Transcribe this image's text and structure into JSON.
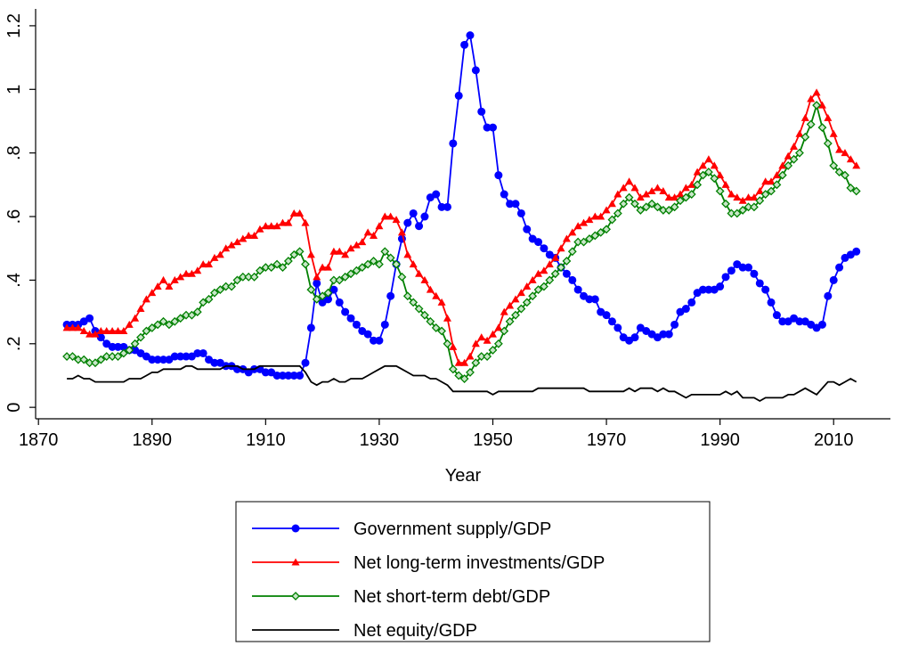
{
  "chart_data": {
    "type": "line",
    "xlabel": "Year",
    "xlim": [
      1869.5,
      2020
    ],
    "xticks": [
      1870,
      1890,
      1910,
      1930,
      1950,
      1970,
      1990,
      2010
    ],
    "ylim": [
      -0.036,
      1.253
    ],
    "yticks": [
      0,
      {
        "value": 0.2,
        "label": ".2"
      },
      {
        "value": 0.4,
        "label": ".4"
      },
      {
        "value": 0.6,
        "label": ".6"
      },
      {
        "value": 0.8,
        "label": ".8"
      },
      1,
      {
        "value": 1.2,
        "label": "1.2"
      }
    ],
    "grid": false,
    "legend": "bottom",
    "x": [
      1875,
      1876,
      1877,
      1878,
      1879,
      1880,
      1881,
      1882,
      1883,
      1884,
      1885,
      1886,
      1887,
      1888,
      1889,
      1890,
      1891,
      1892,
      1893,
      1894,
      1895,
      1896,
      1897,
      1898,
      1899,
      1900,
      1901,
      1902,
      1903,
      1904,
      1905,
      1906,
      1907,
      1908,
      1909,
      1910,
      1911,
      1912,
      1913,
      1914,
      1915,
      1916,
      1917,
      1918,
      1919,
      1920,
      1921,
      1922,
      1923,
      1924,
      1925,
      1926,
      1927,
      1928,
      1929,
      1930,
      1931,
      1932,
      1933,
      1934,
      1935,
      1936,
      1937,
      1938,
      1939,
      1940,
      1941,
      1942,
      1943,
      1944,
      1945,
      1946,
      1947,
      1948,
      1949,
      1950,
      1951,
      1952,
      1953,
      1954,
      1955,
      1956,
      1957,
      1958,
      1959,
      1960,
      1961,
      1962,
      1963,
      1964,
      1965,
      1966,
      1967,
      1968,
      1969,
      1970,
      1971,
      1972,
      1973,
      1974,
      1975,
      1976,
      1977,
      1978,
      1979,
      1980,
      1981,
      1982,
      1983,
      1984,
      1985,
      1986,
      1987,
      1988,
      1989,
      1990,
      1991,
      1992,
      1993,
      1994,
      1995,
      1996,
      1997,
      1998,
      1999,
      2000,
      2001,
      2002,
      2003,
      2004,
      2005,
      2006,
      2007,
      2008,
      2009,
      2010,
      2011,
      2012,
      2013,
      2014
    ],
    "series": [
      {
        "name": "Government supply/GDP",
        "color": "#0000ff",
        "marker": "circle",
        "values": [
          0.26,
          0.26,
          0.26,
          0.27,
          0.28,
          0.24,
          0.22,
          0.2,
          0.19,
          0.19,
          0.19,
          0.18,
          0.18,
          0.17,
          0.16,
          0.15,
          0.15,
          0.15,
          0.15,
          0.16,
          0.16,
          0.16,
          0.16,
          0.17,
          0.17,
          0.15,
          0.14,
          0.14,
          0.13,
          0.13,
          0.12,
          0.12,
          0.11,
          0.12,
          0.12,
          0.11,
          0.11,
          0.1,
          0.1,
          0.1,
          0.1,
          0.1,
          0.14,
          0.25,
          0.39,
          0.33,
          0.34,
          0.37,
          0.33,
          0.3,
          0.28,
          0.26,
          0.24,
          0.23,
          0.21,
          0.21,
          0.26,
          0.35,
          0.45,
          0.53,
          0.58,
          0.61,
          0.57,
          0.6,
          0.66,
          0.67,
          0.63,
          0.63,
          0.83,
          0.98,
          1.14,
          1.17,
          1.06,
          0.93,
          0.88,
          0.88,
          0.73,
          0.67,
          0.64,
          0.64,
          0.61,
          0.56,
          0.53,
          0.52,
          0.5,
          0.48,
          0.47,
          0.44,
          0.42,
          0.4,
          0.37,
          0.35,
          0.34,
          0.34,
          0.3,
          0.29,
          0.27,
          0.25,
          0.22,
          0.21,
          0.22,
          0.25,
          0.24,
          0.23,
          0.22,
          0.23,
          0.23,
          0.26,
          0.3,
          0.31,
          0.33,
          0.36,
          0.37,
          0.37,
          0.37,
          0.38,
          0.41,
          0.43,
          0.45,
          0.44,
          0.44,
          0.42,
          0.39,
          0.37,
          0.33,
          0.29,
          0.27,
          0.27,
          0.28,
          0.27,
          0.27,
          0.26,
          0.25,
          0.26,
          0.35,
          0.4,
          0.44,
          0.47,
          0.48,
          0.49
        ]
      },
      {
        "name": "Net long-term investments/GDP",
        "color": "#ff0000",
        "marker": "triangle",
        "values": [
          0.25,
          0.25,
          0.25,
          0.24,
          0.23,
          0.23,
          0.24,
          0.24,
          0.24,
          0.24,
          0.24,
          0.26,
          0.28,
          0.31,
          0.34,
          0.36,
          0.38,
          0.4,
          0.38,
          0.4,
          0.41,
          0.42,
          0.42,
          0.43,
          0.45,
          0.45,
          0.47,
          0.48,
          0.5,
          0.51,
          0.52,
          0.53,
          0.54,
          0.54,
          0.56,
          0.57,
          0.57,
          0.57,
          0.58,
          0.58,
          0.61,
          0.61,
          0.58,
          0.48,
          0.41,
          0.44,
          0.44,
          0.49,
          0.49,
          0.48,
          0.5,
          0.51,
          0.52,
          0.55,
          0.54,
          0.57,
          0.6,
          0.6,
          0.59,
          0.55,
          0.48,
          0.45,
          0.42,
          0.4,
          0.37,
          0.35,
          0.33,
          0.28,
          0.19,
          0.14,
          0.14,
          0.16,
          0.2,
          0.22,
          0.21,
          0.23,
          0.25,
          0.3,
          0.32,
          0.34,
          0.36,
          0.38,
          0.4,
          0.42,
          0.43,
          0.45,
          0.47,
          0.5,
          0.53,
          0.55,
          0.57,
          0.58,
          0.59,
          0.6,
          0.6,
          0.62,
          0.64,
          0.67,
          0.69,
          0.71,
          0.69,
          0.66,
          0.67,
          0.68,
          0.69,
          0.68,
          0.66,
          0.66,
          0.67,
          0.69,
          0.7,
          0.74,
          0.76,
          0.78,
          0.76,
          0.73,
          0.7,
          0.67,
          0.66,
          0.65,
          0.66,
          0.66,
          0.68,
          0.71,
          0.71,
          0.73,
          0.76,
          0.79,
          0.82,
          0.86,
          0.91,
          0.97,
          0.99,
          0.95,
          0.91,
          0.86,
          0.81,
          0.8,
          0.78,
          0.76
        ]
      },
      {
        "name": "Net short-term debt/GDP",
        "color": "#008000",
        "marker": "diamond",
        "values": [
          0.16,
          0.16,
          0.15,
          0.15,
          0.14,
          0.14,
          0.15,
          0.16,
          0.16,
          0.16,
          0.17,
          0.18,
          0.2,
          0.22,
          0.24,
          0.25,
          0.26,
          0.27,
          0.26,
          0.27,
          0.28,
          0.29,
          0.29,
          0.3,
          0.33,
          0.34,
          0.36,
          0.37,
          0.38,
          0.38,
          0.4,
          0.41,
          0.41,
          0.41,
          0.43,
          0.44,
          0.44,
          0.45,
          0.44,
          0.46,
          0.48,
          0.49,
          0.45,
          0.37,
          0.34,
          0.35,
          0.36,
          0.4,
          0.4,
          0.41,
          0.42,
          0.43,
          0.44,
          0.45,
          0.46,
          0.45,
          0.49,
          0.47,
          0.45,
          0.41,
          0.35,
          0.33,
          0.31,
          0.29,
          0.27,
          0.25,
          0.24,
          0.2,
          0.12,
          0.1,
          0.09,
          0.11,
          0.14,
          0.16,
          0.16,
          0.18,
          0.2,
          0.24,
          0.27,
          0.29,
          0.31,
          0.33,
          0.35,
          0.37,
          0.38,
          0.4,
          0.42,
          0.44,
          0.46,
          0.49,
          0.52,
          0.52,
          0.53,
          0.54,
          0.55,
          0.56,
          0.59,
          0.61,
          0.64,
          0.66,
          0.64,
          0.62,
          0.63,
          0.64,
          0.63,
          0.62,
          0.62,
          0.63,
          0.65,
          0.66,
          0.67,
          0.7,
          0.73,
          0.74,
          0.72,
          0.68,
          0.64,
          0.61,
          0.61,
          0.62,
          0.63,
          0.63,
          0.65,
          0.67,
          0.68,
          0.7,
          0.73,
          0.76,
          0.78,
          0.8,
          0.85,
          0.89,
          0.95,
          0.88,
          0.83,
          0.76,
          0.74,
          0.73,
          0.69,
          0.68
        ]
      },
      {
        "name": "Net equity/GDP",
        "color": "#000000",
        "marker": "none",
        "values": [
          0.09,
          0.09,
          0.1,
          0.09,
          0.09,
          0.08,
          0.08,
          0.08,
          0.08,
          0.08,
          0.08,
          0.09,
          0.09,
          0.09,
          0.1,
          0.11,
          0.11,
          0.12,
          0.12,
          0.12,
          0.12,
          0.13,
          0.13,
          0.12,
          0.12,
          0.12,
          0.12,
          0.12,
          0.13,
          0.13,
          0.13,
          0.12,
          0.12,
          0.12,
          0.13,
          0.13,
          0.13,
          0.13,
          0.13,
          0.13,
          0.13,
          0.13,
          0.11,
          0.08,
          0.07,
          0.08,
          0.08,
          0.09,
          0.08,
          0.08,
          0.09,
          0.09,
          0.09,
          0.1,
          0.11,
          0.12,
          0.13,
          0.13,
          0.13,
          0.12,
          0.11,
          0.1,
          0.1,
          0.1,
          0.09,
          0.09,
          0.08,
          0.07,
          0.05,
          0.05,
          0.05,
          0.05,
          0.05,
          0.05,
          0.05,
          0.04,
          0.05,
          0.05,
          0.05,
          0.05,
          0.05,
          0.05,
          0.05,
          0.06,
          0.06,
          0.06,
          0.06,
          0.06,
          0.06,
          0.06,
          0.06,
          0.06,
          0.05,
          0.05,
          0.05,
          0.05,
          0.05,
          0.05,
          0.05,
          0.06,
          0.05,
          0.06,
          0.06,
          0.06,
          0.05,
          0.06,
          0.05,
          0.05,
          0.04,
          0.03,
          0.04,
          0.04,
          0.04,
          0.04,
          0.04,
          0.04,
          0.05,
          0.04,
          0.05,
          0.03,
          0.03,
          0.03,
          0.02,
          0.03,
          0.03,
          0.03,
          0.03,
          0.04,
          0.04,
          0.05,
          0.06,
          0.05,
          0.04,
          0.06,
          0.08,
          0.08,
          0.07,
          0.08,
          0.09,
          0.08
        ]
      }
    ]
  }
}
